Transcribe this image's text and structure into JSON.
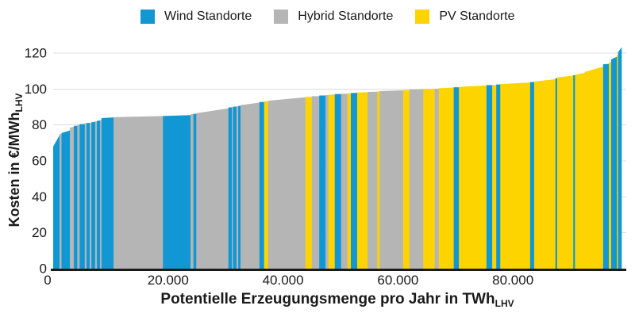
{
  "legend": {
    "items": [
      {
        "key": "wind",
        "label": "Wind Standorte",
        "color": "#1097d4"
      },
      {
        "key": "hybrid",
        "label": "Hybrid Standorte",
        "color": "#b5b5b5"
      },
      {
        "key": "pv",
        "label": "PV Standorte",
        "color": "#fdd400"
      }
    ]
  },
  "y_axis": {
    "title": "Kosten in €/MWh",
    "title_sub": "LHV",
    "ticks": [
      {
        "v": 0,
        "label": "0"
      },
      {
        "v": 20,
        "label": "20"
      },
      {
        "v": 40,
        "label": "40"
      },
      {
        "v": 60,
        "label": "60"
      },
      {
        "v": 80,
        "label": "80"
      },
      {
        "v": 100,
        "label": "100"
      },
      {
        "v": 120,
        "label": "120"
      }
    ]
  },
  "x_axis": {
    "title": "Potentielle Erzeugungsmenge pro Jahr in TWh",
    "title_sub": "LHV",
    "ticks": [
      {
        "v": 0,
        "label": "0"
      },
      {
        "v": 20000,
        "label": "20.000"
      },
      {
        "v": 40000,
        "label": "40.000"
      },
      {
        "v": 60000,
        "label": "60.000"
      },
      {
        "v": 80000,
        "label": "80.000"
      }
    ]
  },
  "chart_data": {
    "type": "area",
    "variant": "merit-order cost-potential curve of colored site stripes",
    "title": "",
    "xlabel": "Potentielle Erzeugungsmenge pro Jahr in TWh_LHV",
    "ylabel": "Kosten in €/MWh_LHV",
    "xlim": [
      0,
      98900
    ],
    "ylim": [
      0,
      120
    ],
    "grid": "horizontal",
    "legend_position": "top",
    "categories": {
      "wind": "Wind Standorte",
      "hybrid": "Hybrid Standorte",
      "pv": "PV Standorte"
    },
    "units": {
      "x": "TWh_LHV per year",
      "y": "€/MWh_LHV"
    },
    "segments": [
      {
        "cat": "wind",
        "x0": 0,
        "x1": 1100,
        "v0": 68,
        "v1": 74.5
      },
      {
        "cat": "hybrid",
        "x0": 1100,
        "x1": 1450,
        "v0": 75,
        "v1": 75
      },
      {
        "cat": "wind",
        "x0": 1450,
        "x1": 2900,
        "v0": 75.5,
        "v1": 77
      },
      {
        "cat": "hybrid",
        "x0": 2900,
        "x1": 3600,
        "v0": 78.5,
        "v1": 79
      },
      {
        "cat": "wind",
        "x0": 3600,
        "x1": 4200,
        "v0": 79.5,
        "v1": 79.5
      },
      {
        "cat": "hybrid",
        "x0": 4200,
        "x1": 4600,
        "v0": 80,
        "v1": 80
      },
      {
        "cat": "wind",
        "x0": 4600,
        "x1": 5500,
        "v0": 80.5,
        "v1": 80.5
      },
      {
        "cat": "hybrid",
        "x0": 5500,
        "x1": 5800,
        "v0": 81,
        "v1": 81
      },
      {
        "cat": "wind",
        "x0": 5800,
        "x1": 6350,
        "v0": 81,
        "v1": 81.2
      },
      {
        "cat": "hybrid",
        "x0": 6350,
        "x1": 6650,
        "v0": 81.3,
        "v1": 81.3
      },
      {
        "cat": "wind",
        "x0": 6650,
        "x1": 7300,
        "v0": 81.5,
        "v1": 81.8
      },
      {
        "cat": "hybrid",
        "x0": 7300,
        "x1": 7600,
        "v0": 82,
        "v1": 82
      },
      {
        "cat": "wind",
        "x0": 7600,
        "x1": 8150,
        "v0": 82.3,
        "v1": 82.5
      },
      {
        "cat": "hybrid",
        "x0": 8150,
        "x1": 8400,
        "v0": 82.6,
        "v1": 82.8
      },
      {
        "cat": "wind",
        "x0": 8400,
        "x1": 10500,
        "v0": 83.8,
        "v1": 84.2
      },
      {
        "cat": "hybrid",
        "x0": 10500,
        "x1": 19100,
        "v0": 84.3,
        "v1": 85
      },
      {
        "cat": "wind",
        "x0": 19100,
        "x1": 23900,
        "v0": 85,
        "v1": 85.5
      },
      {
        "cat": "hybrid",
        "x0": 23900,
        "x1": 24400,
        "v0": 86,
        "v1": 86
      },
      {
        "cat": "wind",
        "x0": 24400,
        "x1": 24900,
        "v0": 86.2,
        "v1": 86.2
      },
      {
        "cat": "hybrid",
        "x0": 24900,
        "x1": 30500,
        "v0": 86.5,
        "v1": 89.3
      },
      {
        "cat": "wind",
        "x0": 30500,
        "x1": 31100,
        "v0": 89.8,
        "v1": 89.8
      },
      {
        "cat": "hybrid",
        "x0": 31100,
        "x1": 31300,
        "v0": 90,
        "v1": 90
      },
      {
        "cat": "wind",
        "x0": 31300,
        "x1": 31900,
        "v0": 90.2,
        "v1": 90.2
      },
      {
        "cat": "hybrid",
        "x0": 31900,
        "x1": 32200,
        "v0": 90.4,
        "v1": 90.4
      },
      {
        "cat": "wind",
        "x0": 32200,
        "x1": 32600,
        "v0": 90.6,
        "v1": 90.6
      },
      {
        "cat": "hybrid",
        "x0": 32600,
        "x1": 35900,
        "v0": 91,
        "v1": 92.5
      },
      {
        "cat": "wind",
        "x0": 35900,
        "x1": 36700,
        "v0": 92.8,
        "v1": 92.8
      },
      {
        "cat": "pv",
        "x0": 36700,
        "x1": 37400,
        "v0": 93.2,
        "v1": 93.2
      },
      {
        "cat": "hybrid",
        "x0": 37400,
        "x1": 43900,
        "v0": 93.5,
        "v1": 95.4
      },
      {
        "cat": "pv",
        "x0": 43900,
        "x1": 45000,
        "v0": 95.6,
        "v1": 95.6
      },
      {
        "cat": "hybrid",
        "x0": 45000,
        "x1": 46300,
        "v0": 96,
        "v1": 96
      },
      {
        "cat": "wind",
        "x0": 46300,
        "x1": 47400,
        "v0": 96.4,
        "v1": 96.4
      },
      {
        "cat": "hybrid",
        "x0": 47400,
        "x1": 47900,
        "v0": 96.6,
        "v1": 96.6
      },
      {
        "cat": "pv",
        "x0": 47900,
        "x1": 49000,
        "v0": 96.8,
        "v1": 97
      },
      {
        "cat": "wind",
        "x0": 49000,
        "x1": 50100,
        "v0": 97.2,
        "v1": 97.2
      },
      {
        "cat": "hybrid",
        "x0": 50100,
        "x1": 51200,
        "v0": 97.4,
        "v1": 97.4
      },
      {
        "cat": "pv",
        "x0": 51200,
        "x1": 51800,
        "v0": 97.6,
        "v1": 97.6
      },
      {
        "cat": "wind",
        "x0": 51800,
        "x1": 52900,
        "v0": 97.8,
        "v1": 97.9
      },
      {
        "cat": "pv",
        "x0": 52900,
        "x1": 54700,
        "v0": 98.1,
        "v1": 98.2
      },
      {
        "cat": "hybrid",
        "x0": 54700,
        "x1": 56400,
        "v0": 98.4,
        "v1": 98.5
      },
      {
        "cat": "pv",
        "x0": 56400,
        "x1": 56800,
        "v0": 98.6,
        "v1": 98.6
      },
      {
        "cat": "hybrid",
        "x0": 56800,
        "x1": 60900,
        "v0": 98.8,
        "v1": 99.3
      },
      {
        "cat": "pv",
        "x0": 60900,
        "x1": 62000,
        "v0": 99.5,
        "v1": 99.5
      },
      {
        "cat": "hybrid",
        "x0": 62000,
        "x1": 64400,
        "v0": 99.7,
        "v1": 99.8
      },
      {
        "cat": "pv",
        "x0": 64400,
        "x1": 66400,
        "v0": 100,
        "v1": 100.1
      },
      {
        "cat": "hybrid",
        "x0": 66400,
        "x1": 67100,
        "v0": 100.2,
        "v1": 100.2
      },
      {
        "cat": "pv",
        "x0": 67100,
        "x1": 69700,
        "v0": 100.4,
        "v1": 100.8
      },
      {
        "cat": "wind",
        "x0": 69700,
        "x1": 70600,
        "v0": 101,
        "v1": 101
      },
      {
        "cat": "pv",
        "x0": 70600,
        "x1": 75400,
        "v0": 101.2,
        "v1": 102
      },
      {
        "cat": "wind",
        "x0": 75400,
        "x1": 76400,
        "v0": 102.2,
        "v1": 102.2
      },
      {
        "cat": "pv",
        "x0": 76400,
        "x1": 77100,
        "v0": 102.3,
        "v1": 102.3
      },
      {
        "cat": "wind",
        "x0": 77100,
        "x1": 77800,
        "v0": 102.5,
        "v1": 102.5
      },
      {
        "cat": "pv",
        "x0": 77800,
        "x1": 83000,
        "v0": 102.7,
        "v1": 103.7
      },
      {
        "cat": "wind",
        "x0": 83000,
        "x1": 83700,
        "v0": 103.9,
        "v1": 103.9
      },
      {
        "cat": "pv",
        "x0": 83700,
        "x1": 87400,
        "v0": 104.1,
        "v1": 105.5
      },
      {
        "cat": "wind",
        "x0": 87400,
        "x1": 87700,
        "v0": 106,
        "v1": 106
      },
      {
        "cat": "pv",
        "x0": 87700,
        "x1": 90500,
        "v0": 106.5,
        "v1": 107.5
      },
      {
        "cat": "wind",
        "x0": 90500,
        "x1": 90800,
        "v0": 107.7,
        "v1": 107.7
      },
      {
        "cat": "pv",
        "x0": 90800,
        "x1": 92500,
        "v0": 108,
        "v1": 109
      },
      {
        "cat": "pv",
        "x0": 92500,
        "x1": 95700,
        "v0": 109.5,
        "v1": 112.5
      },
      {
        "cat": "wind",
        "x0": 95700,
        "x1": 96700,
        "v0": 113.8,
        "v1": 114
      },
      {
        "cat": "pv",
        "x0": 96700,
        "x1": 97100,
        "v0": 114.8,
        "v1": 114.8
      },
      {
        "cat": "wind",
        "x0": 97100,
        "x1": 98100,
        "v0": 116.5,
        "v1": 118
      },
      {
        "cat": "pv",
        "x0": 98100,
        "x1": 98300,
        "v0": 119,
        "v1": 119
      },
      {
        "cat": "wind",
        "x0": 98300,
        "x1": 98900,
        "v0": 120.5,
        "v1": 123.3
      }
    ]
  }
}
